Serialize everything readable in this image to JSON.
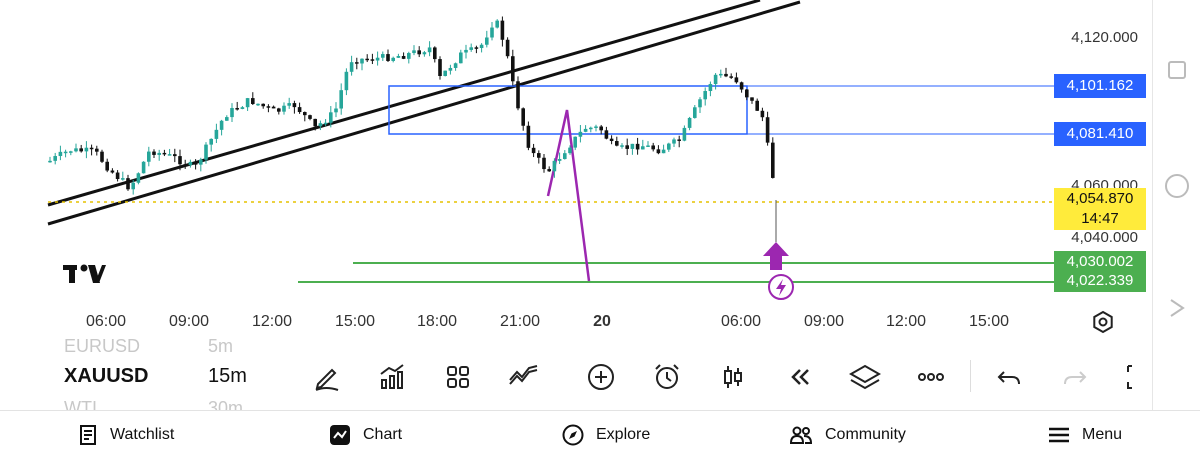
{
  "chart": {
    "symbol": "XAUUSD",
    "timeframe": "15m",
    "logo_text": "TV",
    "price_axis": [
      "4,120.000",
      "4,060.000",
      "4,040.000"
    ],
    "time_axis": [
      "06:00",
      "09:00",
      "12:00",
      "15:00",
      "18:00",
      "21:00",
      "20",
      "06:00",
      "09:00",
      "12:00",
      "15:00"
    ],
    "tags": {
      "zone_top": "4,101.162",
      "zone_bottom": "4,081.410",
      "current_price": "4,054.870",
      "countdown": "14:47",
      "target_1": "4,030.002",
      "target_2": "4,022.339"
    },
    "colors": {
      "zone_blue": "#2962ff",
      "current_yellow": "#ffeb3b",
      "target_green": "#4caf50",
      "bull_candle": "#26a69a",
      "bear_candle": "#111111",
      "arrow_purple": "#9c27b0"
    }
  },
  "watchlist_ghost": [
    "EURUSD",
    "5m",
    "WTI",
    "30m"
  ],
  "toolbar": {
    "icons": [
      "pencil-icon",
      "indicators-icon",
      "grid-icon",
      "strategy-icon",
      "add-icon",
      "alarm-icon",
      "candle-type-icon",
      "replay-icon",
      "layers-icon",
      "more-icon",
      "undo-icon",
      "redo-icon",
      "fullscreen-icon"
    ]
  },
  "nav": {
    "watchlist": "Watchlist",
    "chart": "Chart",
    "explore": "Explore",
    "community": "Community",
    "menu": "Menu"
  }
}
